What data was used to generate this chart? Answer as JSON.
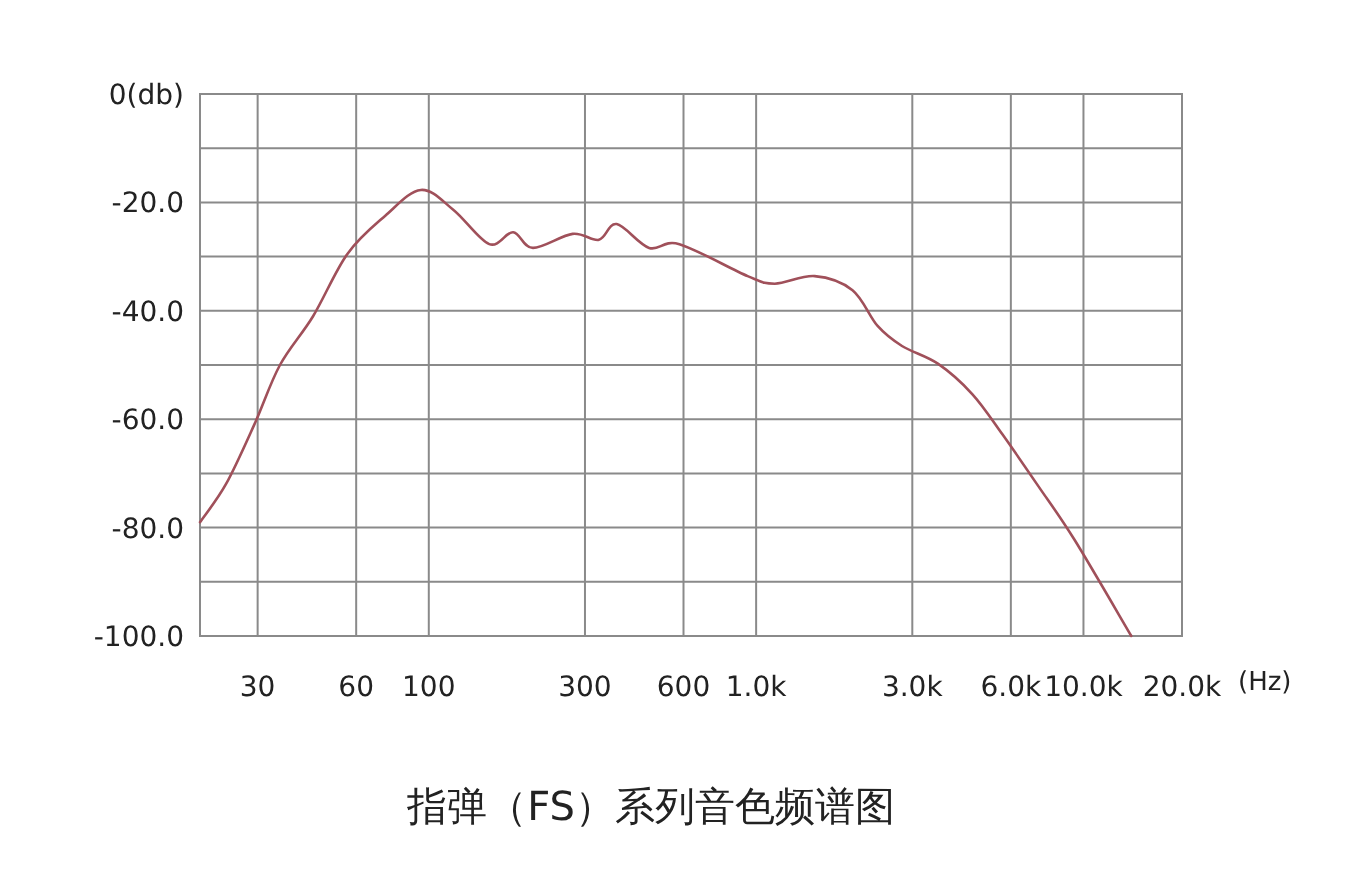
{
  "chart_data": {
    "type": "line",
    "title": "指弹（FS）系列音色频谱图",
    "xlabel": "(Hz)",
    "x": [
      20,
      24,
      29.3,
      35.1,
      44.3,
      56.4,
      73.5,
      94.6,
      119,
      153,
      181,
      208,
      275,
      331,
      375,
      471,
      583,
      942,
      1140,
      1510,
      1970,
      2350,
      2790,
      3600,
      4580,
      5640,
      7270,
      9400,
      14000
    ],
    "series": [
      {
        "color": "#a0505a",
        "values": [
          -79,
          -72,
          -61,
          -50,
          -41,
          -29.5,
          -22.5,
          -17.7,
          -21.4,
          -27.7,
          -25.5,
          -28.4,
          -25.8,
          -26.9,
          -24,
          -28.4,
          -27.7,
          -33.6,
          -35,
          -33.6,
          -36.2,
          -42.8,
          -46.5,
          -49.8,
          -55.4,
          -62.7,
          -72.3,
          -82.3,
          -100
        ]
      }
    ],
    "log": "x",
    "xlim": [
      20,
      20000
    ],
    "xticks": [
      30,
      60,
      100,
      300,
      600,
      {
        "value": 1000,
        "label": "1.0k"
      },
      {
        "value": 3000,
        "label": "3.0k"
      },
      {
        "value": 6000,
        "label": "6.0k"
      },
      {
        "value": 10000,
        "label": "10.0k"
      },
      {
        "value": 20000,
        "label": "20.0k"
      }
    ],
    "ylim": [
      -100,
      0
    ],
    "yticks": [
      {
        "value": 0,
        "label": "0(db)"
      },
      {
        "value": -10,
        "label": null
      },
      {
        "value": -20,
        "label": "-20.0"
      },
      {
        "value": -30,
        "label": null
      },
      {
        "value": -40,
        "label": "-40.0"
      },
      {
        "value": -50,
        "label": null
      },
      {
        "value": -60,
        "label": "-60.0"
      },
      {
        "value": -70,
        "label": null
      },
      {
        "value": -80,
        "label": "-80.0"
      },
      {
        "value": -90,
        "label": null
      },
      {
        "value": -100,
        "label": "-100.0"
      }
    ],
    "grid": true,
    "marker": "none",
    "line_style": "solid"
  }
}
